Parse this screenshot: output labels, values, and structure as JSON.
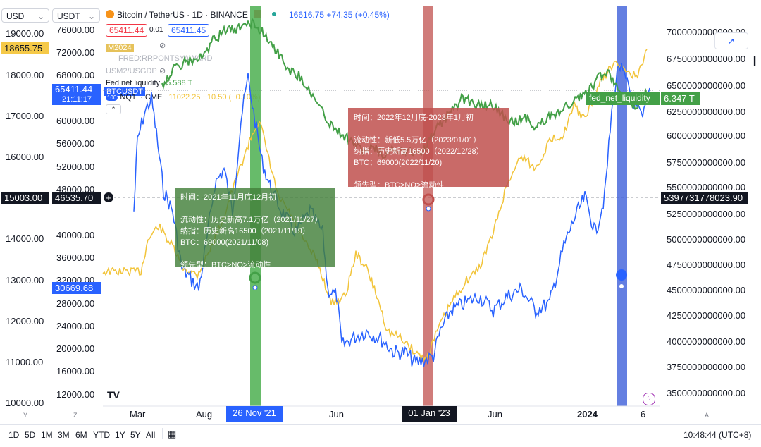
{
  "header": {
    "left_currency": "USD",
    "second_currency": "USDT",
    "symbol_title": "Bitcoin / TetherUS · 1D · BINANCE",
    "price_info": "16616.75 +74.35 (+0.45%)",
    "sell_price": "65411.44",
    "spread": "0.01",
    "buy_price": "65411.45"
  },
  "legend": {
    "m2": "M2024",
    "fred": "FRED:RRPONTSYAWARD",
    "usm2": "USM2/USGDP",
    "fed_label": "Fed net liquidity",
    "fed_value": "5.588 T",
    "btc_label": "BTCUSDT",
    "nq_label": "NQ1! · CME",
    "nq_value": "11022.25 −10.50 (−0.10%)"
  },
  "axis_left_1": {
    "ticks": [
      "19000.00",
      "18000.00",
      "17000.00",
      "16000.00",
      "14000.00",
      "13000.00",
      "12000.00",
      "11000.00",
      "10000.00"
    ],
    "badge_top": "18655.75",
    "badge_mid": "15003.00"
  },
  "axis_left_2": {
    "ticks": [
      "76000.00",
      "72000.00",
      "68000.00",
      "60000.00",
      "56000.00",
      "52000.00",
      "48000.00",
      "40000.00",
      "36000.00",
      "32000.00",
      "28000.00",
      "24000.00",
      "20000.00",
      "16000.00",
      "12000.00"
    ],
    "badge_price": "65411.44",
    "badge_time": "21:11:17",
    "badge_mid": "46535.70",
    "badge_low": "30669.68"
  },
  "axis_right": {
    "ticks": [
      "7000000000000.00",
      "6750000000000.00",
      "6500000000000.00",
      "6250000000000.00",
      "6000000000000.00",
      "5750000000000.00",
      "5500000000000.00",
      "5250000000000.00",
      "5000000000000.00",
      "4750000000000.00",
      "4500000000000.00",
      "4250000000000.00",
      "4000000000000.00",
      "3750000000000.00",
      "3500000000000.00"
    ],
    "badge_mid": "5397731778023.90",
    "fed_tag_label": "fed_net_liquidity",
    "fed_tag_value": "6.347 T"
  },
  "x_axis": {
    "labels": [
      "Mar",
      "Aug",
      "Jun",
      "Jun",
      "2024",
      "6"
    ],
    "highlight_1": "26 Nov '21",
    "highlight_2": "01 Jan '23",
    "y_btn": "Y",
    "z_btn": "Z",
    "a_btn": "A"
  },
  "annotation_green": {
    "line1": "时间：2021年11月底12月初",
    "line2": "流动性：历史新高7.1万亿（2021/11/27）",
    "line3": "纳指：历史新高16500（2021/11/19）",
    "line4": "BTC：69000(2021/11/08)",
    "line5": "领先型：BTC>NQ>流动性"
  },
  "annotation_red": {
    "line1": "时间：2022年12月底-2023年1月初",
    "line2": "流动性：新低5.5万亿（2023/01/01）",
    "line3": "纳指：历史新高16500（2022/12/28）",
    "line4": "BTC：69000(2022/11/20)",
    "line5": "领先型：BTC>NQ>流动性"
  },
  "toolbar": {
    "timeframes": [
      "1D",
      "5D",
      "1M",
      "3M",
      "6M",
      "YTD",
      "1Y",
      "5Y",
      "All"
    ],
    "clock": "10:48:44 (UTC+8)"
  },
  "colors": {
    "btc": "#2962ff",
    "nq": "#f2c43a",
    "fed": "#43a047",
    "green_band": "#4caf50",
    "red_band": "#c0504d",
    "blue_band": "#3d5fd9"
  },
  "icons": [
    "plus-icon",
    "cursor-icon",
    "eye-off-icon",
    "flash-icon",
    "calendar-icon",
    "tradingview-logo"
  ]
}
